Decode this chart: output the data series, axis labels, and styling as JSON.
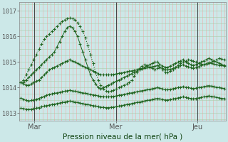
{
  "xlabel": "Pression niveau de la mer( hPa )",
  "bg_color": "#cce8e8",
  "line_color": "#226622",
  "marker_color": "#226622",
  "grid_color_v": "#f0aaaa",
  "grid_color_h": "#aaccaa",
  "vline_color": "#444444",
  "ylim": [
    1012.7,
    1017.35
  ],
  "yticks": [
    1013,
    1014,
    1015,
    1016,
    1017
  ],
  "xtick_labels": [
    "Mar",
    "Mer",
    "Jeu"
  ],
  "xtick_pos": [
    8,
    56,
    104
  ],
  "x_min": 0,
  "x_max": 120,
  "n_vgrid": 56,
  "n_hgrid_step": 0.25,
  "series_solid": [
    [
      1014.2,
      1014.2,
      1014.3,
      1014.4,
      1014.5,
      1014.6,
      1014.7,
      1014.8,
      1014.9,
      1015.0,
      1015.1,
      1015.2,
      1015.3,
      1015.4,
      1015.6,
      1015.8,
      1016.0,
      1016.2,
      1016.35,
      1016.4,
      1016.35,
      1016.2,
      1016.0,
      1015.7,
      1015.4,
      1015.1,
      1014.8,
      1014.5,
      1014.3,
      1014.15,
      1014.0,
      1013.95,
      1014.0,
      1014.05,
      1014.1,
      1014.15,
      1014.2,
      1014.25,
      1014.3,
      1014.35,
      1014.4,
      1014.45,
      1014.5,
      1014.55,
      1014.6,
      1014.65,
      1014.7,
      1014.75,
      1014.8,
      1014.85,
      1014.9,
      1014.95,
      1015.0,
      1015.0,
      1014.9,
      1014.85,
      1014.8,
      1014.8,
      1014.85,
      1014.9,
      1014.95,
      1015.0,
      1015.05,
      1015.1,
      1015.0,
      1014.95,
      1014.9,
      1014.88,
      1014.9,
      1014.95,
      1015.0,
      1015.05,
      1015.1,
      1015.15,
      1015.1,
      1015.05,
      1015.0,
      1014.95,
      1014.9,
      1014.88
    ],
    [
      1014.2,
      1014.15,
      1014.1,
      1014.1,
      1014.15,
      1014.2,
      1014.25,
      1014.3,
      1014.4,
      1014.5,
      1014.6,
      1014.7,
      1014.75,
      1014.8,
      1014.85,
      1014.9,
      1014.95,
      1015.0,
      1015.05,
      1015.1,
      1015.05,
      1015.0,
      1014.95,
      1014.9,
      1014.85,
      1014.8,
      1014.75,
      1014.7,
      1014.65,
      1014.6,
      1014.55,
      1014.5,
      1014.5,
      1014.5,
      1014.5,
      1014.5,
      1014.52,
      1014.54,
      1014.56,
      1014.58,
      1014.6,
      1014.62,
      1014.64,
      1014.66,
      1014.68,
      1014.7,
      1014.72,
      1014.74,
      1014.76,
      1014.78,
      1014.8,
      1014.82,
      1014.84,
      1014.86,
      1014.8,
      1014.75,
      1014.7,
      1014.7,
      1014.72,
      1014.75,
      1014.78,
      1014.82,
      1014.86,
      1014.9,
      1014.85,
      1014.82,
      1014.78,
      1014.76,
      1014.78,
      1014.82,
      1014.86,
      1014.9,
      1014.94,
      1014.98,
      1014.95,
      1014.92,
      1014.9,
      1014.88,
      1014.86,
      1014.85
    ],
    [
      1013.6,
      1013.55,
      1013.5,
      1013.48,
      1013.5,
      1013.52,
      1013.55,
      1013.58,
      1013.62,
      1013.66,
      1013.7,
      1013.74,
      1013.76,
      1013.78,
      1013.8,
      1013.82,
      1013.84,
      1013.86,
      1013.88,
      1013.9,
      1013.88,
      1013.86,
      1013.84,
      1013.82,
      1013.8,
      1013.78,
      1013.76,
      1013.74,
      1013.72,
      1013.7,
      1013.68,
      1013.66,
      1013.65,
      1013.64,
      1013.64,
      1013.65,
      1013.66,
      1013.68,
      1013.7,
      1013.72,
      1013.74,
      1013.76,
      1013.78,
      1013.8,
      1013.82,
      1013.84,
      1013.86,
      1013.88,
      1013.9,
      1013.92,
      1013.94,
      1013.96,
      1013.98,
      1014.0,
      1013.98,
      1013.95,
      1013.92,
      1013.92,
      1013.94,
      1013.96,
      1013.98,
      1014.0,
      1014.02,
      1014.04,
      1014.02,
      1014.0,
      1013.98,
      1013.96,
      1013.98,
      1014.0,
      1014.02,
      1014.04,
      1014.06,
      1014.08,
      1014.06,
      1014.04,
      1014.02,
      1014.0,
      1013.98,
      1013.97
    ],
    [
      1013.2,
      1013.18,
      1013.16,
      1013.15,
      1013.16,
      1013.18,
      1013.2,
      1013.22,
      1013.25,
      1013.28,
      1013.3,
      1013.32,
      1013.34,
      1013.36,
      1013.38,
      1013.4,
      1013.42,
      1013.44,
      1013.46,
      1013.48,
      1013.46,
      1013.44,
      1013.42,
      1013.4,
      1013.38,
      1013.36,
      1013.34,
      1013.32,
      1013.3,
      1013.28,
      1013.26,
      1013.24,
      1013.23,
      1013.22,
      1013.22,
      1013.23,
      1013.24,
      1013.26,
      1013.28,
      1013.3,
      1013.32,
      1013.34,
      1013.36,
      1013.38,
      1013.4,
      1013.42,
      1013.44,
      1013.46,
      1013.48,
      1013.5,
      1013.52,
      1013.54,
      1013.56,
      1013.58,
      1013.56,
      1013.54,
      1013.52,
      1013.52,
      1013.54,
      1013.56,
      1013.58,
      1013.6,
      1013.62,
      1013.64,
      1013.62,
      1013.6,
      1013.58,
      1013.56,
      1013.58,
      1013.6,
      1013.62,
      1013.64,
      1013.66,
      1013.68,
      1013.66,
      1013.64,
      1013.62,
      1013.6,
      1013.58,
      1013.57
    ]
  ],
  "series_dotted": [
    [
      1014.2,
      1014.3,
      1014.5,
      1014.7,
      1014.9,
      1015.1,
      1015.3,
      1015.5,
      1015.7,
      1015.9,
      1016.0,
      1016.1,
      1016.2,
      1016.3,
      1016.4,
      1016.5,
      1016.6,
      1016.65,
      1016.7,
      1016.72,
      1016.7,
      1016.65,
      1016.55,
      1016.4,
      1016.2,
      1015.95,
      1015.65,
      1015.3,
      1014.95,
      1014.6,
      1014.3,
      1014.1,
      1013.95,
      1013.88,
      1013.85,
      1013.86,
      1013.9,
      1013.95,
      1014.0,
      1014.05,
      1014.1,
      1014.15,
      1014.2,
      1014.3,
      1014.45,
      1014.6,
      1014.75,
      1014.85,
      1014.9,
      1014.88,
      1014.82,
      1014.75,
      1014.72,
      1014.75,
      1014.8,
      1014.72,
      1014.6,
      1014.6,
      1014.65,
      1014.72,
      1014.8,
      1014.88,
      1014.95,
      1015.0,
      1015.05,
      1015.1,
      1015.08,
      1015.05,
      1015.0,
      1014.95,
      1014.92,
      1014.9,
      1014.92,
      1014.95,
      1015.0,
      1015.05,
      1015.1,
      1015.15,
      1015.12,
      1015.1
    ]
  ],
  "xlabel_fontsize": 7.5,
  "ytick_fontsize": 6,
  "xtick_fontsize": 7
}
